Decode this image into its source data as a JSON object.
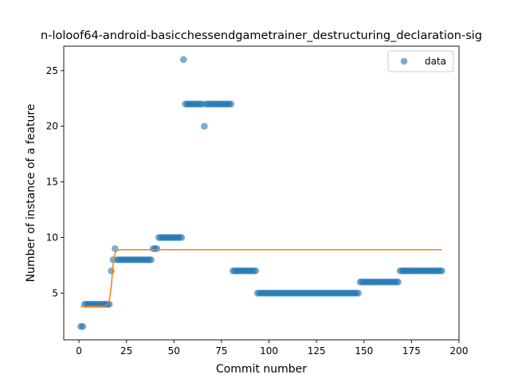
{
  "chart_data": {
    "type": "scatter",
    "title": "n-loloof64-android-basicchessendgametrainer_destructuring_declaration-sig",
    "xlabel": "Commit number",
    "ylabel": "Number of instance of a feature",
    "xlim": [
      -8,
      200
    ],
    "ylim": [
      0.8,
      27.2
    ],
    "xticks": [
      0,
      25,
      50,
      75,
      100,
      125,
      150,
      175,
      200
    ],
    "yticks": [
      5,
      10,
      15,
      20,
      25
    ],
    "grid": false,
    "legend": {
      "position": "top-right",
      "entries": [
        "data"
      ]
    },
    "colors": {
      "data": "#1f77b4",
      "fit": "#ff7f0e"
    },
    "series": [
      {
        "name": "data",
        "kind": "scatter",
        "runs": [
          {
            "x_from": 1,
            "x_to": 2,
            "y": 2
          },
          {
            "x_from": 3,
            "x_to": 16,
            "y": 4
          },
          {
            "x_from": 17,
            "x_to": 17,
            "y": 7
          },
          {
            "x_from": 18,
            "x_to": 18,
            "y": 8
          },
          {
            "x_from": 19,
            "x_to": 19,
            "y": 9
          },
          {
            "x_from": 20,
            "x_to": 38,
            "y": 8
          },
          {
            "x_from": 39,
            "x_to": 41,
            "y": 9
          },
          {
            "x_from": 42,
            "x_to": 54,
            "y": 10
          },
          {
            "x_from": 55,
            "x_to": 55,
            "y": 26
          },
          {
            "x_from": 56,
            "x_to": 65,
            "y": 22
          },
          {
            "x_from": 66,
            "x_to": 66,
            "y": 20
          },
          {
            "x_from": 67,
            "x_to": 80,
            "y": 22
          },
          {
            "x_from": 81,
            "x_to": 93,
            "y": 7
          },
          {
            "x_from": 94,
            "x_to": 147,
            "y": 5
          },
          {
            "x_from": 148,
            "x_to": 168,
            "y": 6
          },
          {
            "x_from": 169,
            "x_to": 191,
            "y": 7
          }
        ]
      },
      {
        "name": "",
        "kind": "line",
        "points": [
          [
            1,
            3.8
          ],
          [
            13,
            3.8
          ],
          [
            14,
            3.85
          ],
          [
            15,
            4.0
          ],
          [
            16,
            4.4
          ],
          [
            17,
            5.6
          ],
          [
            18,
            7.6
          ],
          [
            19,
            8.6
          ],
          [
            20,
            8.85
          ],
          [
            22,
            8.9
          ],
          [
            191,
            8.9
          ]
        ]
      }
    ]
  }
}
